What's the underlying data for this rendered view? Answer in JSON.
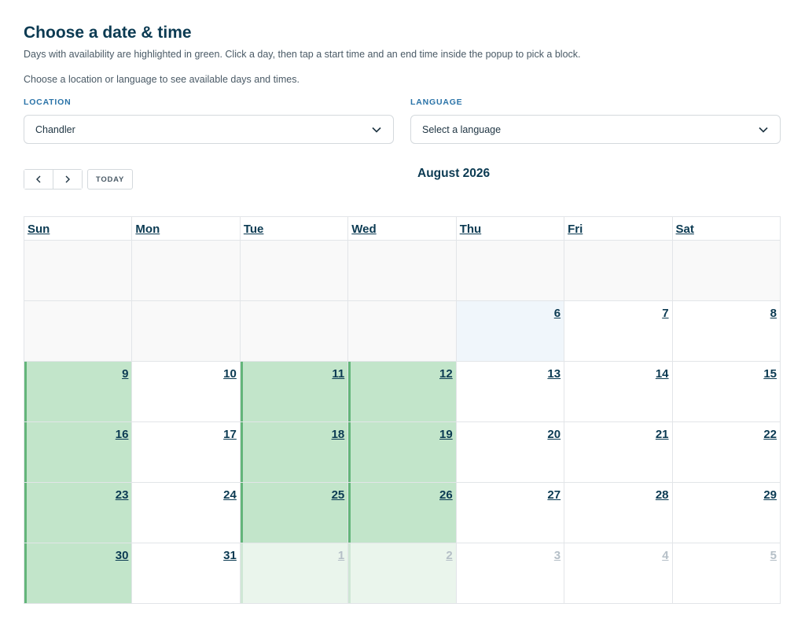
{
  "header": {
    "title": "Choose a date & time",
    "description": "Days with availability are highlighted in green. Click a day, then tap a start time and an end time inside the popup to pick a block.",
    "hint": "Choose a location or language to see available days and times."
  },
  "location": {
    "label": "LOCATION",
    "value": "Chandler"
  },
  "language": {
    "label": "LANGUAGE",
    "value": "Select a language"
  },
  "toolbar": {
    "prev_icon": "chevron-left-icon",
    "next_icon": "chevron-right-icon",
    "today_label": "TODAY",
    "month_title": "August 2026"
  },
  "calendar": {
    "weekdays": [
      "Sun",
      "Mon",
      "Tue",
      "Wed",
      "Thu",
      "Fri",
      "Sat"
    ],
    "weeks": [
      [
        {
          "day": "",
          "state": "empty"
        },
        {
          "day": "",
          "state": "empty"
        },
        {
          "day": "",
          "state": "empty"
        },
        {
          "day": "",
          "state": "empty"
        },
        {
          "day": "",
          "state": "empty"
        },
        {
          "day": "",
          "state": "empty"
        },
        {
          "day": "",
          "state": "empty"
        }
      ],
      [
        {
          "day": "",
          "state": "empty"
        },
        {
          "day": "",
          "state": "empty"
        },
        {
          "day": "",
          "state": "empty"
        },
        {
          "day": "",
          "state": "empty"
        },
        {
          "day": "6",
          "state": "today"
        },
        {
          "day": "7",
          "state": "normal"
        },
        {
          "day": "8",
          "state": "normal"
        }
      ],
      [
        {
          "day": "9",
          "state": "available"
        },
        {
          "day": "10",
          "state": "normal"
        },
        {
          "day": "11",
          "state": "available"
        },
        {
          "day": "12",
          "state": "available"
        },
        {
          "day": "13",
          "state": "normal"
        },
        {
          "day": "14",
          "state": "normal"
        },
        {
          "day": "15",
          "state": "normal"
        }
      ],
      [
        {
          "day": "16",
          "state": "available"
        },
        {
          "day": "17",
          "state": "normal"
        },
        {
          "day": "18",
          "state": "available"
        },
        {
          "day": "19",
          "state": "available"
        },
        {
          "day": "20",
          "state": "normal"
        },
        {
          "day": "21",
          "state": "normal"
        },
        {
          "day": "22",
          "state": "normal"
        }
      ],
      [
        {
          "day": "23",
          "state": "available"
        },
        {
          "day": "24",
          "state": "normal"
        },
        {
          "day": "25",
          "state": "available"
        },
        {
          "day": "26",
          "state": "available"
        },
        {
          "day": "27",
          "state": "normal"
        },
        {
          "day": "28",
          "state": "normal"
        },
        {
          "day": "29",
          "state": "normal"
        }
      ],
      [
        {
          "day": "30",
          "state": "available"
        },
        {
          "day": "31",
          "state": "normal"
        },
        {
          "day": "1",
          "state": "other-available"
        },
        {
          "day": "2",
          "state": "other-available"
        },
        {
          "day": "3",
          "state": "other"
        },
        {
          "day": "4",
          "state": "other"
        },
        {
          "day": "5",
          "state": "other"
        }
      ]
    ]
  },
  "colors": {
    "available": "#c2e5ca",
    "available_border": "#63b57a",
    "today": "#f0f6fb",
    "heading": "#0b3a52",
    "label_accent": "#2a73a8"
  }
}
